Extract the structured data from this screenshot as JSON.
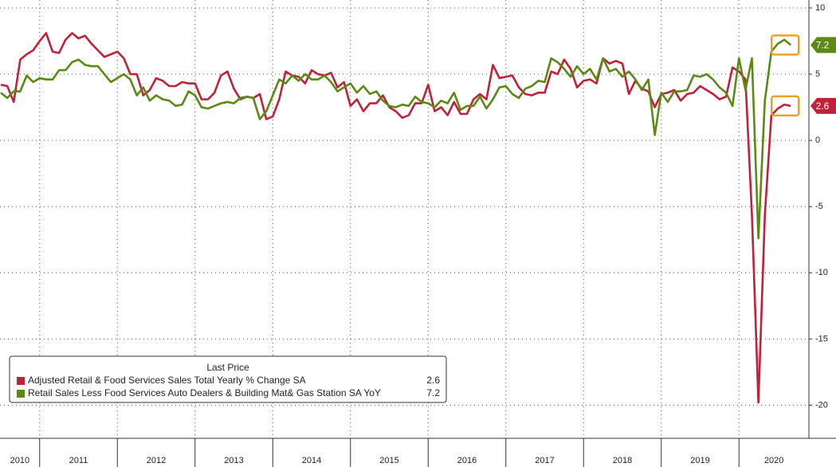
{
  "chart_data": {
    "type": "line",
    "legend_title": "Last Price",
    "categories": [
      "2010",
      null,
      null,
      null,
      null,
      null,
      "2011",
      null,
      null,
      null,
      null,
      null,
      null,
      null,
      null,
      null,
      null,
      null,
      "2012",
      null,
      null,
      null,
      null,
      null,
      null,
      null,
      null,
      null,
      null,
      null,
      "2013",
      null,
      null,
      null,
      null,
      null,
      null,
      null,
      null,
      null,
      null,
      null,
      "2014",
      null,
      null,
      null,
      null,
      null,
      null,
      null,
      null,
      null,
      null,
      null,
      "2015",
      null,
      null,
      null,
      null,
      null,
      null,
      null,
      null,
      null,
      null,
      null,
      "2016",
      null,
      null,
      null,
      null,
      null,
      null,
      null,
      null,
      null,
      null,
      null,
      "2017",
      null,
      null,
      null,
      null,
      null,
      null,
      null,
      null,
      null,
      null,
      null,
      "2018",
      null,
      null,
      null,
      null,
      null,
      null,
      null,
      null,
      null,
      null,
      null,
      "2019",
      null,
      null,
      null,
      null,
      null,
      null,
      null,
      null,
      null,
      null,
      null,
      "2020",
      null,
      null,
      null,
      null,
      null,
      null,
      null,
      null
    ],
    "series": [
      {
        "name": "Adjusted Retail & Food Services Sales Total Yearly % Change SA",
        "color": "#c0223a",
        "values": [
          4.2,
          4.1,
          2.9,
          6.1,
          6.5,
          6.8,
          7.5,
          8.1,
          6.7,
          6.6,
          7.6,
          8.1,
          7.7,
          7.9,
          7.3,
          6.8,
          6.3,
          6.5,
          6.7,
          6.2,
          5.0,
          5.0,
          3.4,
          3.8,
          4.7,
          4.5,
          4.1,
          4.1,
          4.4,
          4.3,
          4.3,
          3.1,
          3.1,
          3.6,
          4.9,
          5.2,
          3.9,
          3.1,
          3.3,
          3.2,
          3.5,
          1.6,
          1.8,
          3.1,
          5.2,
          4.9,
          4.8,
          4.3,
          5.3,
          5.0,
          4.9,
          5.1,
          4.0,
          4.4,
          2.6,
          3.1,
          2.2,
          2.8,
          2.8,
          3.4,
          2.5,
          2.2,
          1.7,
          1.9,
          2.8,
          2.8,
          4.2,
          2.2,
          2.5,
          1.9,
          2.9,
          2.0,
          2.0,
          3.1,
          3.5,
          3.1,
          5.7,
          4.7,
          4.8,
          4.9,
          4.0,
          3.5,
          3.4,
          3.6,
          3.6,
          5.2,
          5.0,
          6.1,
          5.4,
          4.0,
          4.5,
          4.6,
          4.3,
          6.2,
          5.8,
          6.0,
          5.8,
          3.5,
          4.5,
          3.9,
          3.7,
          2.5,
          3.5,
          3.6,
          3.8,
          3.0,
          3.5,
          3.6,
          4.1,
          3.8,
          3.5,
          3.1,
          3.3,
          5.5,
          5.2,
          4.6,
          -5.6,
          -19.8,
          -5.6,
          1.9,
          2.4,
          2.7,
          2.6
        ]
      },
      {
        "name": "Retail Sales Less Food Services Auto Dealers & Building Mat& Gas Station SA YoY",
        "color": "#5a8a14",
        "values": [
          3.6,
          3.2,
          3.7,
          3.7,
          4.9,
          4.4,
          4.7,
          4.6,
          4.6,
          5.3,
          5.3,
          5.9,
          6.1,
          5.7,
          5.6,
          5.6,
          5.0,
          4.4,
          4.7,
          5.0,
          4.6,
          3.4,
          4.0,
          3.0,
          3.4,
          3.1,
          3.0,
          2.6,
          2.7,
          3.7,
          3.4,
          2.5,
          2.4,
          2.6,
          2.8,
          2.9,
          2.8,
          3.2,
          3.3,
          3.2,
          1.6,
          2.2,
          3.4,
          4.6,
          4.3,
          4.9,
          4.5,
          5.0,
          4.6,
          4.6,
          4.9,
          4.4,
          3.7,
          4.0,
          4.3,
          3.6,
          4.1,
          3.5,
          3.7,
          3.0,
          2.6,
          2.5,
          2.7,
          2.6,
          3.3,
          2.9,
          2.8,
          2.5,
          3.0,
          2.8,
          3.6,
          2.3,
          2.6,
          2.6,
          3.3,
          2.4,
          3.1,
          4.0,
          4.1,
          3.5,
          3.2,
          3.9,
          4.1,
          4.5,
          4.4,
          6.2,
          5.9,
          5.4,
          4.8,
          5.6,
          5.0,
          5.4,
          4.6,
          6.2,
          5.2,
          5.4,
          4.8,
          5.2,
          4.6,
          3.8,
          4.6,
          0.4,
          3.6,
          2.9,
          3.7,
          3.7,
          3.8,
          4.9,
          4.8,
          5.0,
          4.6,
          4.0,
          3.6,
          2.6,
          6.2,
          3.8,
          6.2,
          -7.4,
          3.0,
          6.7,
          7.3,
          7.6,
          7.2
        ]
      }
    ],
    "ylim": [
      -22.5,
      10.6
    ],
    "yticks": [
      10,
      5,
      0,
      -5,
      -10,
      -15,
      -20
    ],
    "grid": true
  }
}
